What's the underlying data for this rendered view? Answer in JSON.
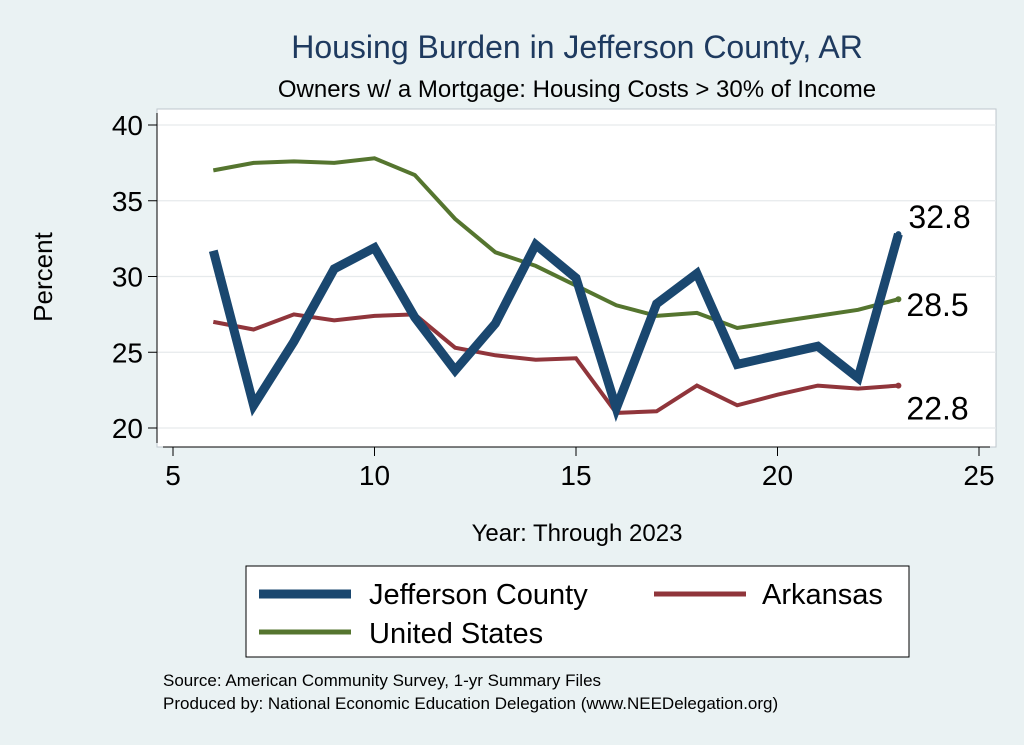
{
  "chart_data": {
    "type": "line",
    "title": "Housing Burden in Jefferson County, AR",
    "subtitle": "Owners w/ a Mortgage: Housing Costs > 30% of Income",
    "xlabel": "Year: Through 2023",
    "ylabel": "Percent",
    "xlim": [
      5,
      25
    ],
    "ylim": [
      20,
      40
    ],
    "x_ticks": [
      5,
      10,
      15,
      20,
      25
    ],
    "y_ticks": [
      20,
      25,
      30,
      35,
      40
    ],
    "grid": true,
    "legend_position": "bottom",
    "series": [
      {
        "name": "Jefferson County",
        "color": "#1a476f",
        "weight": "thick",
        "x": [
          6,
          7,
          8,
          9,
          10,
          11,
          12,
          13,
          14,
          15,
          16,
          17,
          18,
          19,
          20,
          21,
          22,
          23
        ],
        "values": [
          31.7,
          21.5,
          25.7,
          30.5,
          31.9,
          27.3,
          23.8,
          26.9,
          32.1,
          29.9,
          21.3,
          28.2,
          30.2,
          24.2,
          24.8,
          25.4,
          23.3,
          32.8
        ],
        "end_label": "32.8"
      },
      {
        "name": "Arkansas",
        "color": "#90353b",
        "weight": "medium",
        "x": [
          6,
          7,
          8,
          9,
          10,
          11,
          12,
          13,
          14,
          15,
          16,
          17,
          18,
          19,
          20,
          21,
          22,
          23
        ],
        "values": [
          27.0,
          26.5,
          27.5,
          27.1,
          27.4,
          27.5,
          25.3,
          24.8,
          24.5,
          24.6,
          21.0,
          21.1,
          22.8,
          21.5,
          22.2,
          22.8,
          22.6,
          22.8
        ],
        "end_label": "22.8"
      },
      {
        "name": "United States",
        "color": "#55752f",
        "weight": "medium",
        "x": [
          6,
          7,
          8,
          9,
          10,
          11,
          12,
          13,
          14,
          15,
          16,
          17,
          18,
          19,
          20,
          21,
          22,
          23
        ],
        "values": [
          37.0,
          37.5,
          37.6,
          37.5,
          37.8,
          36.7,
          33.8,
          31.6,
          30.7,
          29.4,
          28.1,
          27.4,
          27.6,
          26.6,
          27.0,
          27.4,
          27.8,
          28.5
        ],
        "end_label": "28.5"
      }
    ],
    "notes": [
      "Source: American Community Survey, 1-yr Summary Files",
      "Produced by: National Economic Education Delegation (www.NEEDelegation.org)"
    ]
  }
}
